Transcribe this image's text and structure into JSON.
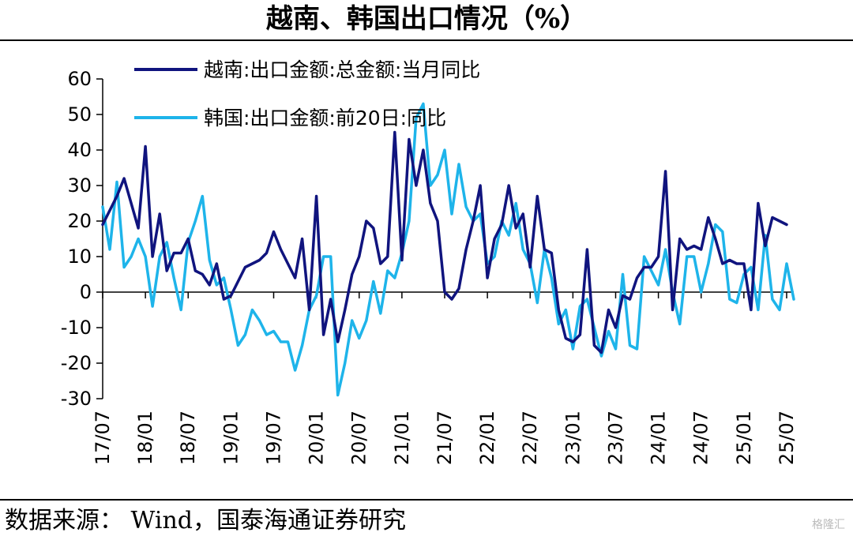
{
  "title": "越南、韩国出口情况（%）",
  "source": "数据来源： Wind，国泰海通证券研究",
  "watermark": "格隆汇",
  "colors": {
    "vietnam": "#10147E",
    "korea": "#1EB4EA"
  },
  "chart_data": {
    "type": "line",
    "xlabel": "",
    "ylabel": "",
    "ylim": [
      -30,
      60
    ],
    "yticks": [
      60,
      50,
      40,
      30,
      20,
      10,
      0,
      -10,
      -20,
      -30
    ],
    "xticks": [
      "17/07",
      "18/01",
      "18/07",
      "19/01",
      "19/07",
      "20/01",
      "20/07",
      "21/01",
      "21/07",
      "22/01",
      "22/07",
      "23/01",
      "23/07",
      "24/01",
      "24/07",
      "25/01",
      "25/07"
    ],
    "x_start": "17/07",
    "x_end": "25/08",
    "legend_position": "top-left",
    "grid": false,
    "series": [
      {
        "name": "越南:出口金额:总金额:当月同比",
        "values": [
          19,
          23,
          27,
          32,
          25,
          18,
          41,
          10,
          22,
          6,
          11,
          11,
          15,
          6,
          5,
          2,
          8,
          -2,
          -1,
          3,
          7,
          8,
          9,
          11,
          17,
          12,
          8,
          4,
          15,
          -5,
          27,
          -12,
          -2,
          -14,
          -5,
          5,
          10,
          20,
          18,
          8,
          10,
          45,
          9,
          43,
          30,
          40,
          25,
          20,
          0,
          -2,
          1,
          12,
          20,
          30,
          4,
          15,
          19,
          30,
          18,
          22,
          7,
          27,
          12,
          11,
          -5,
          -13,
          -14,
          -12,
          12,
          -15,
          -17,
          -5,
          -10,
          -1,
          -2,
          4,
          7,
          7,
          10,
          34,
          -5,
          15,
          12,
          13,
          12,
          21,
          15,
          8,
          9,
          8,
          8,
          -5,
          25,
          13,
          21,
          20,
          19
        ]
      },
      {
        "name": "韩国:出口金额:前20日:同比",
        "values": [
          24,
          12,
          31,
          7,
          10,
          15,
          10,
          -4,
          10,
          14,
          4,
          -5,
          14,
          20,
          27,
          9,
          2,
          4,
          -5,
          -15,
          -12,
          -5,
          -8,
          -12,
          -11,
          -14,
          -14,
          -22,
          -15,
          -5,
          -1,
          10,
          10,
          -29,
          -20,
          -8,
          -13,
          -8,
          3,
          -6,
          6,
          4,
          11,
          20,
          49,
          53,
          30,
          33,
          40,
          22,
          36,
          24,
          20,
          22,
          8,
          10,
          20,
          16,
          25,
          12,
          8,
          -3,
          12,
          4,
          -9,
          -5,
          -16,
          -4,
          -2,
          -10,
          -18,
          -11,
          -16,
          5,
          -15,
          -16,
          10,
          6,
          2,
          12,
          0,
          -9,
          10,
          10,
          0,
          8,
          19,
          17,
          -2,
          -3,
          5,
          7,
          -5,
          16,
          -2,
          -5,
          8,
          -2
        ]
      }
    ]
  }
}
